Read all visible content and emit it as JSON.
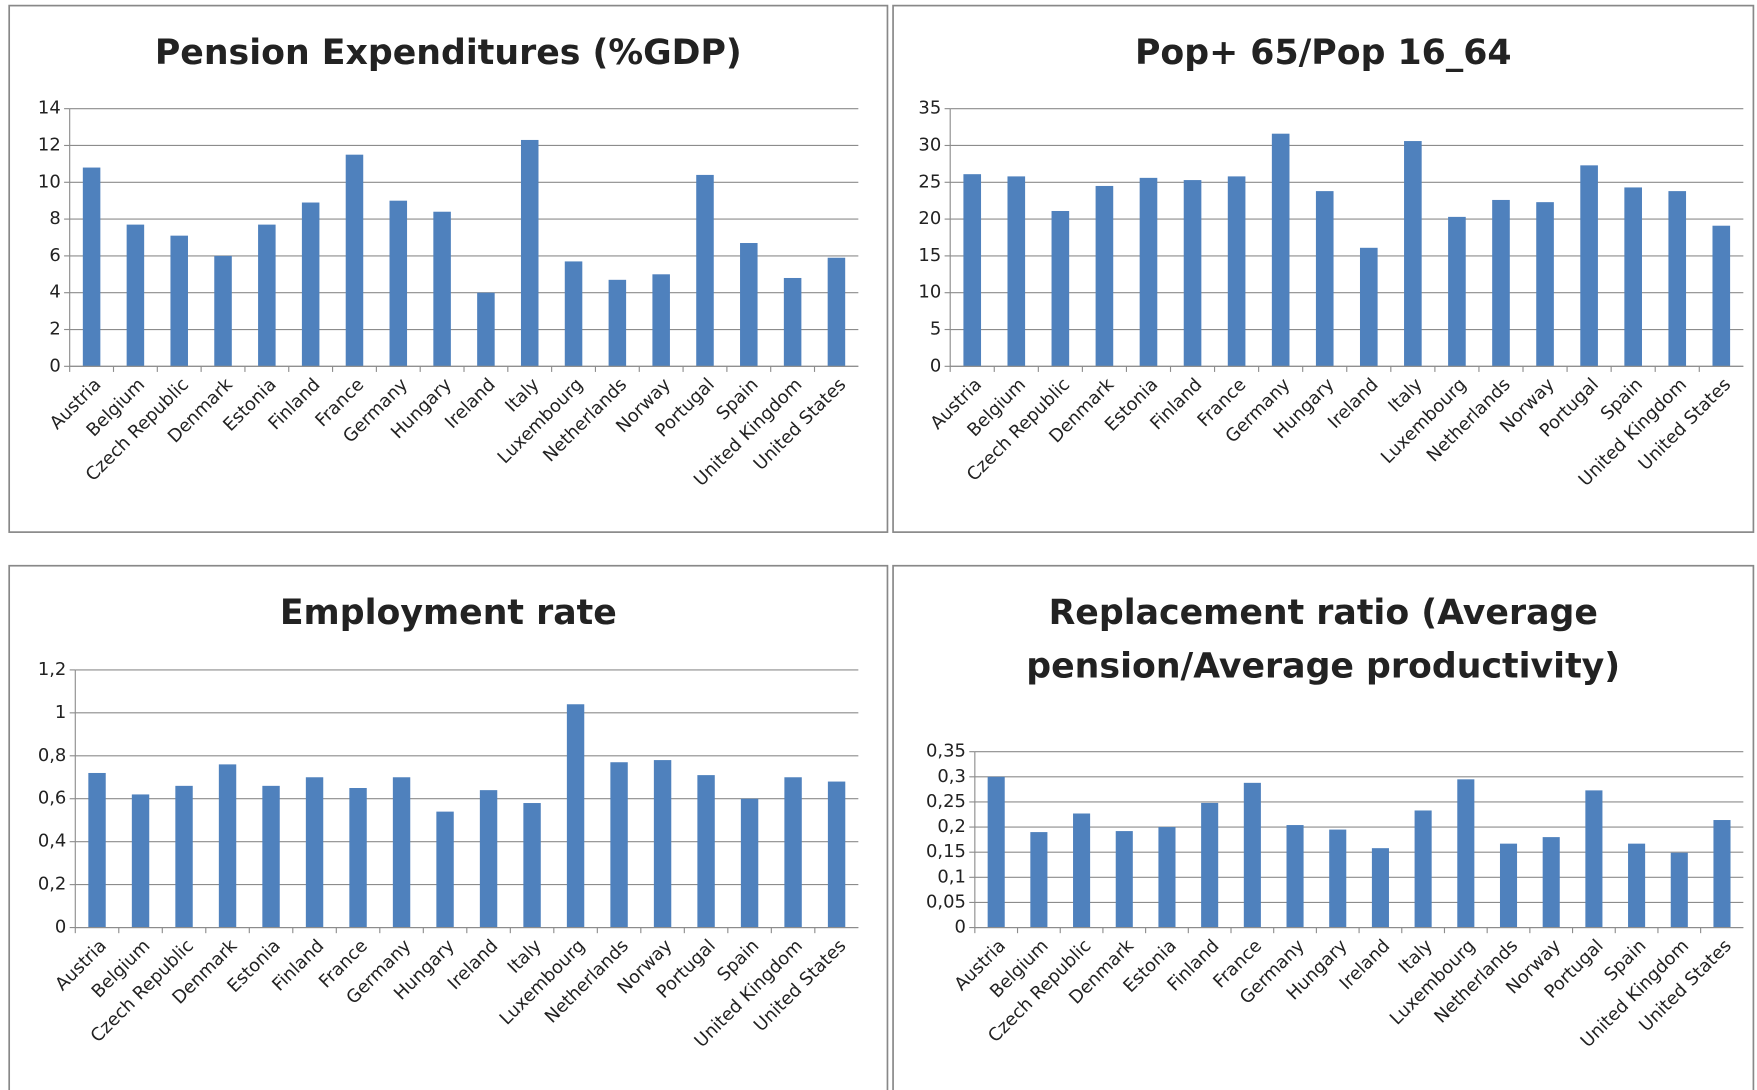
{
  "chart_data": [
    {
      "type": "bar",
      "title": [
        "Pension Expenditures (%GDP)"
      ],
      "categories": [
        "Austria",
        "Belgium",
        "Czech Republic",
        "Denmark",
        "Estonia",
        "Finland",
        "France",
        "Germany",
        "Hungary",
        "Ireland",
        "Italy",
        "Luxembourg",
        "Netherlands",
        "Norway",
        "Portugal",
        "Spain",
        "United Kingdom",
        "United States"
      ],
      "values": [
        10.8,
        7.7,
        7.1,
        6.0,
        7.7,
        8.9,
        11.5,
        9.0,
        8.4,
        4.0,
        12.3,
        5.7,
        4.7,
        5.0,
        10.4,
        6.7,
        4.8,
        5.9
      ],
      "color": "#4f81bd",
      "ylim": [
        0,
        14
      ],
      "yticks": [
        0,
        2,
        4,
        6,
        8,
        10,
        12,
        14
      ],
      "grid": true
    },
    {
      "type": "bar",
      "title": [
        "Pop+ 65/Pop 16_64"
      ],
      "categories": [
        "Austria",
        "Belgium",
        "Czech Republic",
        "Denmark",
        "Estonia",
        "Finland",
        "France",
        "Germany",
        "Hungary",
        "Ireland",
        "Italy",
        "Luxembourg",
        "Netherlands",
        "Norway",
        "Portugal",
        "Spain",
        "United Kingdom",
        "United States"
      ],
      "values": [
        26.1,
        25.8,
        21.1,
        24.5,
        25.6,
        25.3,
        25.8,
        31.6,
        23.8,
        16.1,
        30.6,
        20.3,
        22.6,
        22.3,
        27.3,
        24.3,
        23.8,
        19.1
      ],
      "color": "#4f81bd",
      "ylim": [
        0,
        35
      ],
      "yticks": [
        0,
        5,
        10,
        15,
        20,
        25,
        30,
        35
      ],
      "grid": true
    },
    {
      "type": "bar",
      "title": [
        "Employment rate"
      ],
      "categories": [
        "Austria",
        "Belgium",
        "Czech Republic",
        "Denmark",
        "Estonia",
        "Finland",
        "France",
        "Germany",
        "Hungary",
        "Ireland",
        "Italy",
        "Luxembourg",
        "Netherlands",
        "Norway",
        "Portugal",
        "Spain",
        "United Kingdom",
        "United States"
      ],
      "values": [
        0.72,
        0.62,
        0.66,
        0.76,
        0.66,
        0.7,
        0.65,
        0.7,
        0.54,
        0.64,
        0.58,
        1.04,
        0.77,
        0.78,
        0.71,
        0.6,
        0.7,
        0.68
      ],
      "color": "#4f81bd",
      "ylim": [
        0,
        1.2
      ],
      "yticks": [
        0,
        {
          "value": 0.2,
          "label": "0,2"
        },
        {
          "value": 0.4,
          "label": "0,4"
        },
        {
          "value": 0.6,
          "label": "0,6"
        },
        {
          "value": 0.8,
          "label": "0,8"
        },
        1,
        {
          "value": 1.2,
          "label": "1,2"
        }
      ],
      "grid": true
    },
    {
      "type": "bar",
      "title": [
        "Replacement ratio (Average",
        "pension/Average productivity)"
      ],
      "categories": [
        "Austria",
        "Belgium",
        "Czech Republic",
        "Denmark",
        "Estonia",
        "Finland",
        "France",
        "Germany",
        "Hungary",
        "Ireland",
        "Italy",
        "Luxembourg",
        "Netherlands",
        "Norway",
        "Portugal",
        "Spain",
        "United Kingdom",
        "United States"
      ],
      "values": [
        0.3,
        0.19,
        0.227,
        0.192,
        0.2,
        0.248,
        0.288,
        0.204,
        0.195,
        0.158,
        0.233,
        0.295,
        0.167,
        0.18,
        0.273,
        0.167,
        0.149,
        0.214
      ],
      "color": "#4f81bd",
      "ylim": [
        0,
        0.35
      ],
      "yticks": [
        0,
        {
          "value": 0.05,
          "label": "0,05"
        },
        {
          "value": 0.1,
          "label": "0,1"
        },
        {
          "value": 0.15,
          "label": "0,15"
        },
        {
          "value": 0.2,
          "label": "0,2"
        },
        {
          "value": 0.25,
          "label": "0,25"
        },
        {
          "value": 0.3,
          "label": "0,3"
        },
        {
          "value": 0.35,
          "label": "0,35"
        }
      ],
      "grid": true
    }
  ]
}
